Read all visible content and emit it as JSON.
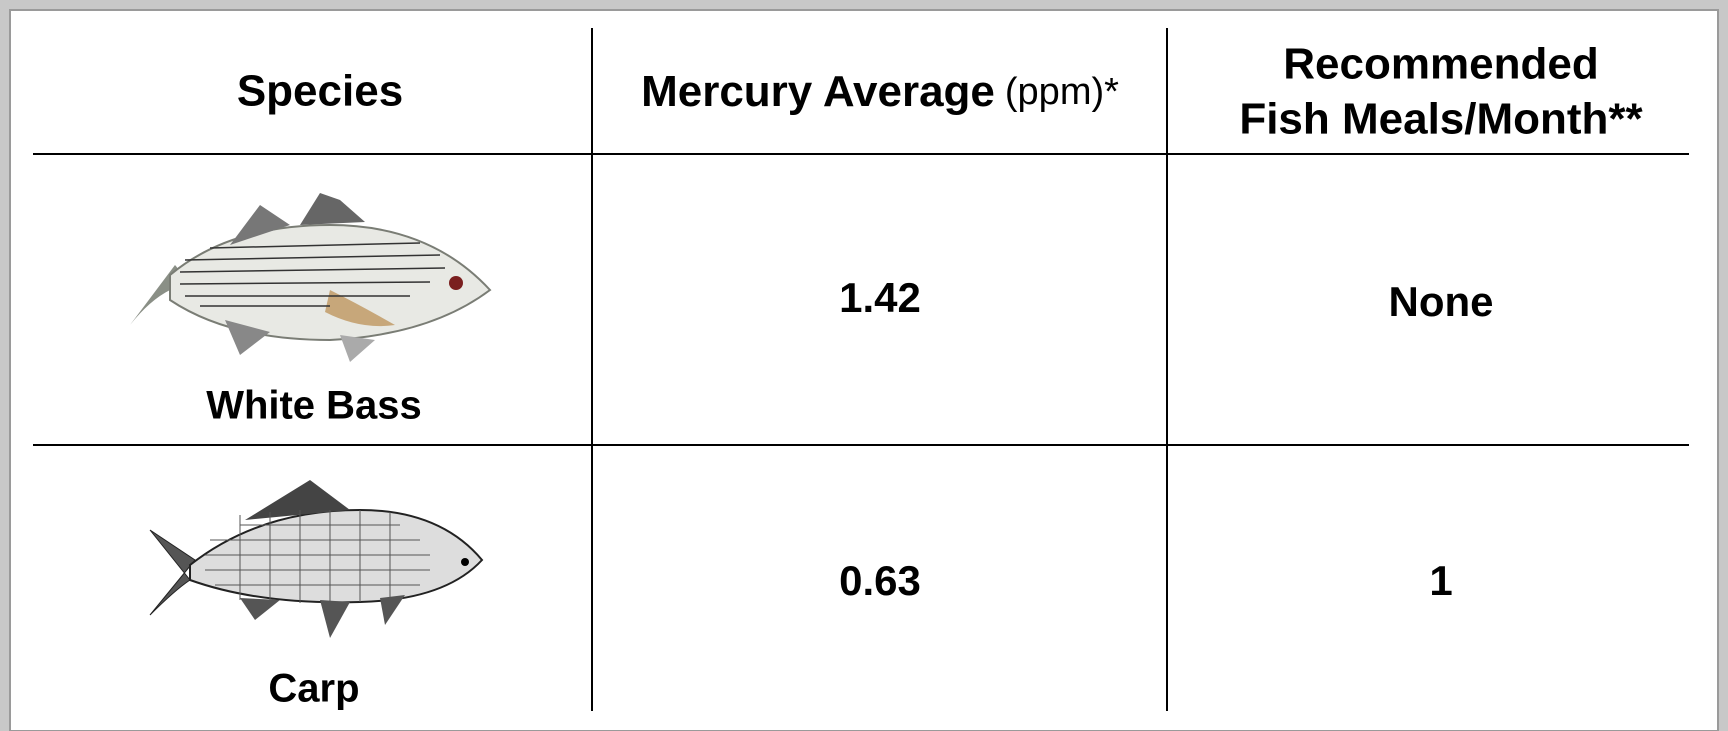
{
  "table": {
    "header": {
      "species": "Species",
      "mercury": "Mercury Average",
      "mercury_unit": "(ppm)*",
      "meals_line1": "Recommended",
      "meals_line2": "Fish Meals/Month**"
    },
    "rows": [
      {
        "species": "White Bass",
        "mercury": 1.42,
        "meals": "None"
      },
      {
        "species": "Carp",
        "mercury": 0.63,
        "meals": 1
      }
    ]
  }
}
